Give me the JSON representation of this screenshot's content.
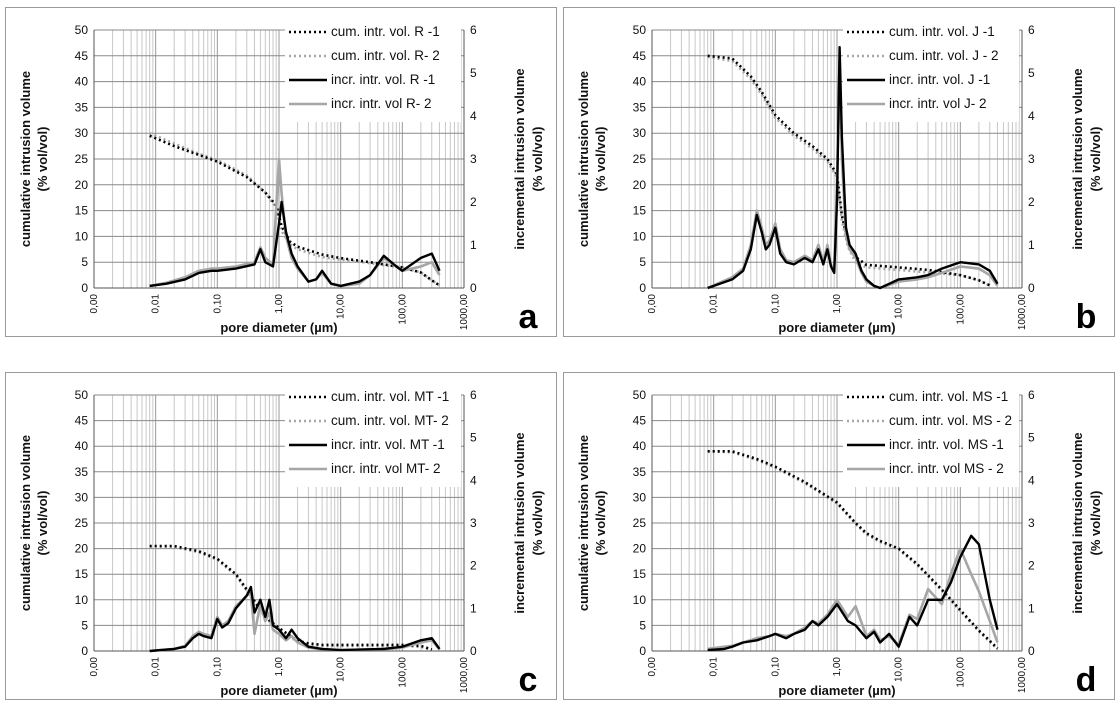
{
  "figure": {
    "x_label": "pore diameter (µm)",
    "y_label_left": [
      "cumulative intrusion volume",
      "(% vol/vol)"
    ],
    "y_label_right": [
      "incremental intrusion volume",
      "(% vol/vol)"
    ],
    "x_tick_labels": [
      "0,00",
      "0,01",
      "0,10",
      "1,00",
      "10,00",
      "100,00",
      "1000,00"
    ],
    "y_left_ticks": [
      "0",
      "5",
      "10",
      "15",
      "20",
      "25",
      "30",
      "35",
      "40",
      "45",
      "50"
    ],
    "y_right_ticks": [
      "0",
      "1",
      "2",
      "3",
      "4",
      "5",
      "6"
    ]
  },
  "colors": {
    "black": "#000000",
    "gray": "#a6a6a6",
    "grid": "#c8c8c8"
  },
  "chart_data": [
    {
      "type": "line",
      "panel_label": "a",
      "xlabel": "pore diameter (µm)",
      "ylabel": "cumulative intrusion volume (% vol/vol)",
      "ylabel_right": "incremental intrusion volume (% vol/vol)",
      "x_scale": "log",
      "xlim": [
        0.001,
        1000
      ],
      "ylim": [
        0,
        50
      ],
      "ylim_right": [
        0,
        6
      ],
      "grid": true,
      "legend_position": "top-right",
      "series": [
        {
          "name": "cum. intr. vol.  R -1",
          "axis": "left",
          "color": "black",
          "style": "dotted",
          "x": [
            0.008,
            0.02,
            0.05,
            0.1,
            0.3,
            0.6,
            0.9,
            1.1,
            1.5,
            2,
            5,
            10,
            30,
            100,
            200,
            300,
            400
          ],
          "y": [
            29.5,
            27.5,
            25.8,
            24.5,
            21.5,
            18.5,
            16,
            12,
            9,
            8,
            6.5,
            5.8,
            5,
            4,
            3,
            1.5,
            0.5
          ]
        },
        {
          "name": "cum. intr. vol. R- 2",
          "axis": "left",
          "color": "gray",
          "style": "dotted",
          "x": [
            0.008,
            0.02,
            0.05,
            0.1,
            0.3,
            0.6,
            0.9,
            1.1,
            1.5,
            2,
            5,
            10,
            30,
            100,
            200,
            300,
            400
          ],
          "y": [
            30,
            28,
            26,
            24.8,
            21.8,
            18.5,
            15.5,
            11,
            8.5,
            7.5,
            6,
            5.5,
            4.8,
            4,
            3,
            1.5,
            0.5
          ]
        },
        {
          "name": "incr. intr. vol.  R -1",
          "axis": "right",
          "color": "black",
          "style": "solid",
          "x": [
            0.008,
            0.015,
            0.03,
            0.05,
            0.08,
            0.1,
            0.2,
            0.4,
            0.5,
            0.6,
            0.8,
            1.0,
            1.1,
            1.3,
            1.6,
            2,
            3,
            4,
            5,
            7,
            10,
            20,
            30,
            50,
            80,
            100,
            200,
            300,
            400
          ],
          "y": [
            0.05,
            0.1,
            0.2,
            0.35,
            0.4,
            0.4,
            0.45,
            0.55,
            0.9,
            0.6,
            0.5,
            1.5,
            2.0,
            1.3,
            0.8,
            0.5,
            0.15,
            0.2,
            0.4,
            0.1,
            0.05,
            0.15,
            0.3,
            0.75,
            0.5,
            0.4,
            0.7,
            0.8,
            0.4
          ]
        },
        {
          "name": "incr. intr. vol R- 2",
          "axis": "right",
          "color": "gray",
          "style": "solid",
          "x": [
            0.008,
            0.015,
            0.03,
            0.05,
            0.08,
            0.1,
            0.2,
            0.4,
            0.5,
            0.6,
            0.8,
            1.0,
            1.1,
            1.3,
            1.6,
            2,
            3,
            4,
            5,
            7,
            10,
            20,
            30,
            50,
            80,
            100,
            200,
            300,
            400
          ],
          "y": [
            0.05,
            0.12,
            0.25,
            0.4,
            0.45,
            0.45,
            0.5,
            0.6,
            0.95,
            0.7,
            0.55,
            3.0,
            2.2,
            1.2,
            0.7,
            0.45,
            0.15,
            0.2,
            0.35,
            0.1,
            0.05,
            0.1,
            0.3,
            0.7,
            0.5,
            0.4,
            0.5,
            0.6,
            0.3
          ]
        }
      ]
    },
    {
      "type": "line",
      "panel_label": "b",
      "xlabel": "pore diameter (µm)",
      "ylabel": "cumulative intrusion volume (% vol/vol)",
      "ylabel_right": "incremental intrusion volume (% vol/vol)",
      "x_scale": "log",
      "xlim": [
        0.001,
        1000
      ],
      "ylim": [
        0,
        50
      ],
      "ylim_right": [
        0,
        6
      ],
      "grid": true,
      "legend_position": "top-right",
      "series": [
        {
          "name": "cum. intr. vol.  J -1",
          "axis": "left",
          "color": "black",
          "style": "dotted",
          "x": [
            0.008,
            0.02,
            0.04,
            0.06,
            0.1,
            0.2,
            0.4,
            0.7,
            1.0,
            1.2,
            1.5,
            2,
            3,
            10,
            30,
            100,
            200,
            300
          ],
          "y": [
            45,
            44.5,
            41,
            38,
            33.5,
            30,
            27.5,
            25,
            22,
            14,
            9,
            6,
            4.5,
            4,
            3.5,
            2.5,
            1.5,
            0.5
          ]
        },
        {
          "name": "cum. intr. vol. J - 2",
          "axis": "left",
          "color": "gray",
          "style": "dotted",
          "x": [
            0.008,
            0.02,
            0.04,
            0.06,
            0.1,
            0.2,
            0.4,
            0.7,
            1.0,
            1.2,
            1.5,
            2,
            3,
            10,
            30,
            100,
            200,
            300
          ],
          "y": [
            44.8,
            44,
            40.5,
            37.5,
            33,
            29.5,
            27,
            24.5,
            21.5,
            13,
            8,
            5,
            4,
            3.5,
            3,
            2.5,
            1.5,
            0.5
          ]
        },
        {
          "name": "incr. intr. vol.  J -1",
          "axis": "right",
          "color": "black",
          "style": "solid",
          "x": [
            0.008,
            0.02,
            0.03,
            0.04,
            0.05,
            0.06,
            0.07,
            0.08,
            0.1,
            0.12,
            0.15,
            0.2,
            0.3,
            0.4,
            0.5,
            0.6,
            0.7,
            0.8,
            0.9,
            1.0,
            1.1,
            1.2,
            1.4,
            1.6,
            2,
            2.5,
            3,
            4,
            5,
            10,
            20,
            30,
            50,
            100,
            200,
            300,
            400
          ],
          "y": [
            0,
            0.2,
            0.4,
            0.9,
            1.7,
            1.3,
            0.9,
            1.0,
            1.4,
            0.8,
            0.6,
            0.55,
            0.7,
            0.6,
            0.9,
            0.55,
            0.9,
            0.5,
            0.35,
            2.0,
            5.6,
            3.5,
            1.4,
            1.0,
            0.8,
            0.4,
            0.2,
            0.05,
            0,
            0.2,
            0.25,
            0.3,
            0.45,
            0.6,
            0.55,
            0.4,
            0.1
          ]
        },
        {
          "name": "incr. intr. vol J- 2",
          "axis": "right",
          "color": "gray",
          "style": "solid",
          "x": [
            0.008,
            0.02,
            0.03,
            0.04,
            0.05,
            0.06,
            0.07,
            0.08,
            0.1,
            0.12,
            0.15,
            0.2,
            0.3,
            0.4,
            0.5,
            0.6,
            0.7,
            0.8,
            0.9,
            1.0,
            1.1,
            1.2,
            1.4,
            1.6,
            2,
            2.5,
            3,
            4,
            5,
            10,
            20,
            30,
            50,
            100,
            200,
            300,
            400
          ],
          "y": [
            0,
            0.25,
            0.45,
            1.0,
            1.8,
            1.4,
            1.0,
            1.1,
            1.5,
            0.9,
            0.65,
            0.6,
            0.75,
            0.65,
            1.0,
            0.6,
            1.0,
            0.55,
            0.4,
            2.5,
            5.3,
            3.0,
            1.2,
            0.9,
            0.7,
            0.35,
            0.15,
            0.05,
            0,
            0.15,
            0.2,
            0.25,
            0.35,
            0.5,
            0.45,
            0.3,
            0.05
          ]
        }
      ]
    },
    {
      "type": "line",
      "panel_label": "c",
      "xlabel": "pore diameter (µm)",
      "ylabel": "cumulative intrusion volume (% vol/vol)",
      "ylabel_right": "incremental intrusion volume (% vol/vol)",
      "x_scale": "log",
      "xlim": [
        0.001,
        1000
      ],
      "ylim": [
        0,
        50
      ],
      "ylim_right": [
        0,
        6
      ],
      "grid": true,
      "legend_position": "top-right",
      "series": [
        {
          "name": "cum. intr. vol.  MT -1",
          "axis": "left",
          "color": "black",
          "style": "dotted",
          "x": [
            0.008,
            0.02,
            0.05,
            0.1,
            0.2,
            0.3,
            0.5,
            0.7,
            1.0,
            1.5,
            2,
            3,
            5,
            10,
            100,
            200,
            300
          ],
          "y": [
            20.5,
            20.5,
            19.5,
            18,
            15,
            12,
            8,
            6,
            4.5,
            3,
            2,
            1.5,
            1.2,
            1.2,
            1.2,
            1.0,
            0.3
          ]
        },
        {
          "name": "cum. intr. vol. MT- 2",
          "axis": "left",
          "color": "gray",
          "style": "dotted",
          "x": [
            0.008,
            0.02,
            0.05,
            0.1,
            0.2,
            0.3,
            0.5,
            0.7,
            1.0,
            1.5,
            2,
            3,
            5,
            10,
            100,
            200,
            300
          ],
          "y": [
            20.3,
            20.3,
            19.3,
            17.8,
            14.8,
            11.8,
            7.8,
            5.8,
            4.3,
            2.8,
            1.8,
            1.3,
            1.0,
            1.0,
            1.0,
            0.8,
            0.2
          ]
        },
        {
          "name": "incr. intr. vol.  MT -1",
          "axis": "right",
          "color": "black",
          "style": "solid",
          "x": [
            0.008,
            0.02,
            0.03,
            0.04,
            0.05,
            0.06,
            0.08,
            0.1,
            0.12,
            0.15,
            0.2,
            0.3,
            0.35,
            0.4,
            0.5,
            0.6,
            0.7,
            0.8,
            1.0,
            1.3,
            1.6,
            2,
            3,
            5,
            10,
            50,
            100,
            200,
            300,
            400
          ],
          "y": [
            0,
            0.05,
            0.1,
            0.3,
            0.4,
            0.35,
            0.3,
            0.75,
            0.55,
            0.65,
            1.0,
            1.3,
            1.5,
            0.9,
            1.2,
            0.8,
            1.2,
            0.6,
            0.5,
            0.3,
            0.5,
            0.3,
            0.1,
            0.05,
            0.02,
            0.05,
            0.1,
            0.25,
            0.3,
            0.05
          ]
        },
        {
          "name": "incr. intr. vol MT- 2",
          "axis": "right",
          "color": "gray",
          "style": "solid",
          "x": [
            0.008,
            0.02,
            0.03,
            0.04,
            0.05,
            0.06,
            0.08,
            0.1,
            0.12,
            0.15,
            0.2,
            0.3,
            0.35,
            0.4,
            0.5,
            0.6,
            0.7,
            0.8,
            1.0,
            1.3,
            1.6,
            2,
            3,
            5,
            10,
            50,
            100,
            200,
            300,
            400
          ],
          "y": [
            0,
            0.05,
            0.12,
            0.35,
            0.45,
            0.4,
            0.35,
            0.8,
            0.6,
            0.7,
            1.05,
            1.3,
            1.35,
            0.4,
            1.1,
            0.7,
            0.9,
            0.5,
            0.4,
            0.25,
            0.35,
            0.2,
            0.08,
            0.04,
            0.02,
            0.04,
            0.08,
            0.2,
            0.25,
            0.04
          ]
        }
      ]
    },
    {
      "type": "line",
      "panel_label": "d",
      "xlabel": "pore diameter (µm)",
      "ylabel": "cumulative intrusion volume (% vol/vol)",
      "ylabel_right": "incremental intrusion volume (% vol/vol)",
      "x_scale": "log",
      "xlim": [
        0.001,
        1000
      ],
      "ylim": [
        0,
        50
      ],
      "ylim_right": [
        0,
        6
      ],
      "grid": true,
      "legend_position": "top-right",
      "series": [
        {
          "name": "cum. intr. vol.  MS -1",
          "axis": "left",
          "color": "black",
          "style": "dotted",
          "x": [
            0.008,
            0.02,
            0.05,
            0.1,
            0.3,
            1.0,
            2,
            3,
            5,
            10,
            20,
            50,
            100,
            200,
            300,
            400
          ],
          "y": [
            39,
            39,
            37.5,
            36,
            33,
            29,
            25,
            23,
            21.5,
            20,
            17,
            12,
            8,
            4,
            2,
            0.5
          ]
        },
        {
          "name": "cum. intr. vol. MS - 2",
          "axis": "left",
          "color": "gray",
          "style": "dotted",
          "x": [
            0.008,
            0.02,
            0.05,
            0.1,
            0.3,
            1.0,
            2,
            3,
            5,
            10,
            20,
            50,
            100,
            200,
            300,
            400
          ],
          "y": [
            39,
            38.8,
            37.3,
            35.8,
            32.8,
            28.8,
            24.8,
            22.8,
            21.3,
            19.8,
            16.8,
            11.8,
            7.8,
            3.8,
            1.8,
            0.4
          ]
        },
        {
          "name": "incr. intr. vol.  MS -1",
          "axis": "right",
          "color": "black",
          "style": "solid",
          "x": [
            0.008,
            0.015,
            0.02,
            0.03,
            0.05,
            0.08,
            0.1,
            0.15,
            0.2,
            0.3,
            0.4,
            0.5,
            0.7,
            1.0,
            1.5,
            2,
            3,
            4,
            5,
            7,
            10,
            15,
            20,
            30,
            50,
            70,
            100,
            150,
            200,
            300,
            400
          ],
          "y": [
            0.02,
            0.05,
            0.1,
            0.2,
            0.25,
            0.35,
            0.4,
            0.3,
            0.4,
            0.5,
            0.7,
            0.6,
            0.8,
            1.1,
            0.7,
            0.6,
            0.3,
            0.45,
            0.2,
            0.4,
            0.1,
            0.8,
            0.6,
            1.2,
            1.2,
            1.6,
            2.2,
            2.7,
            2.5,
            1.2,
            0.5
          ]
        },
        {
          "name": "incr. intr. vol MS - 2",
          "axis": "right",
          "color": "gray",
          "style": "solid",
          "x": [
            0.008,
            0.015,
            0.02,
            0.03,
            0.05,
            0.08,
            0.1,
            0.15,
            0.2,
            0.3,
            0.4,
            0.5,
            0.7,
            1.0,
            1.5,
            2,
            3,
            4,
            5,
            7,
            10,
            15,
            20,
            30,
            50,
            70,
            100,
            150,
            200,
            300,
            400
          ],
          "y": [
            0.05,
            0.1,
            0.12,
            0.2,
            0.3,
            0.35,
            0.4,
            0.35,
            0.4,
            0.55,
            0.7,
            0.65,
            0.85,
            1.2,
            0.8,
            1.05,
            0.35,
            0.5,
            0.25,
            0.35,
            0.15,
            0.85,
            0.75,
            1.45,
            1.1,
            1.8,
            2.4,
            1.8,
            1.4,
            0.7,
            0.2
          ]
        }
      ]
    }
  ]
}
